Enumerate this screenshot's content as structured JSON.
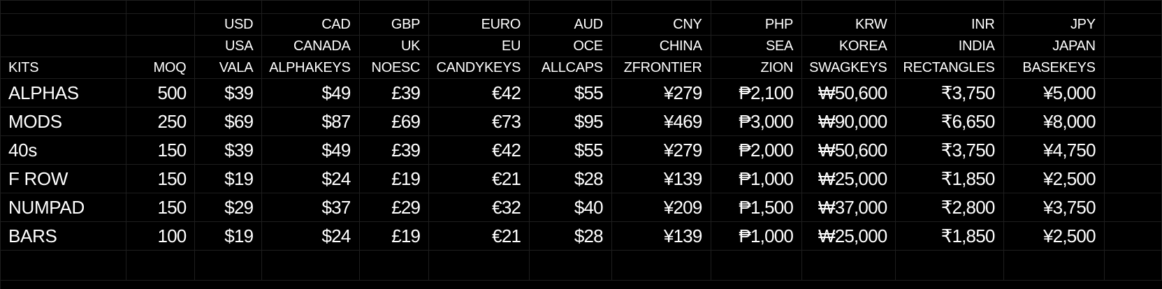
{
  "sheet": {
    "row_currency": [
      "",
      "",
      "USD",
      "CAD",
      "GBP",
      "EURO",
      "AUD",
      "CNY",
      "PHP",
      "KRW",
      "INR",
      "JPY"
    ],
    "row_region": [
      "",
      "",
      "USA",
      "CANADA",
      "UK",
      "EU",
      "OCE",
      "CHINA",
      "SEA",
      "KOREA",
      "INDIA",
      "JAPAN"
    ],
    "row_vendor": [
      "KITS",
      "MOQ",
      "VALA",
      "ALPHAKEYS",
      "NOESC",
      "CANDYKEYS",
      "ALLCAPS",
      "ZFRONTIER",
      "ZION",
      "SWAGKEYS",
      "RECTANGLES",
      "BASEKEYS"
    ],
    "rows": [
      [
        "ALPHAS",
        "500",
        "$39",
        "$49",
        "£39",
        "€42",
        "$55",
        "¥279",
        "₱2,100",
        "₩50,600",
        "₹3,750",
        "¥5,000"
      ],
      [
        "MODS",
        "250",
        "$69",
        "$87",
        "£69",
        "€73",
        "$95",
        "¥469",
        "₱3,000",
        "₩90,000",
        "₹6,650",
        "¥8,000"
      ],
      [
        "40s",
        "150",
        "$39",
        "$49",
        "£39",
        "€42",
        "$55",
        "¥279",
        "₱2,000",
        "₩50,600",
        "₹3,750",
        "¥4,750"
      ],
      [
        "F ROW",
        "150",
        "$19",
        "$24",
        "£19",
        "€21",
        "$28",
        "¥139",
        "₱1,000",
        "₩25,000",
        "₹1,850",
        "¥2,500"
      ],
      [
        "NUMPAD",
        "150",
        "$29",
        "$37",
        "£29",
        "€32",
        "$40",
        "¥209",
        "₱1,500",
        "₩37,000",
        "₹2,800",
        "¥3,750"
      ],
      [
        "BARS",
        "100",
        "$19",
        "$24",
        "£19",
        "€21",
        "$28",
        "¥139",
        "₱1,000",
        "₩25,000",
        "₹1,850",
        "¥2,500"
      ]
    ]
  }
}
